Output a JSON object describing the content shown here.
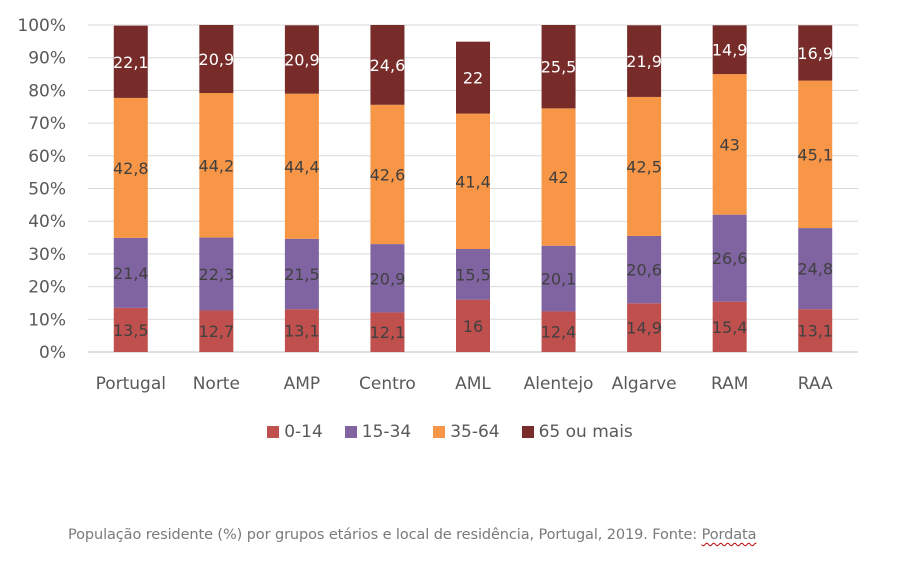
{
  "chart_data": {
    "type": "bar",
    "stacked": true,
    "orientation": "vertical",
    "title": "",
    "xlabel": "",
    "ylabel": "",
    "ylim": [
      0,
      100
    ],
    "y_ticks": [
      "0%",
      "10%",
      "20%",
      "30%",
      "40%",
      "50%",
      "60%",
      "70%",
      "80%",
      "90%",
      "100%"
    ],
    "grid": true,
    "legend_position": "bottom",
    "categories": [
      "Portugal",
      "Norte",
      "AMP",
      "Centro",
      "AML",
      "Alentejo",
      "Algarve",
      "RAM",
      "RAA"
    ],
    "series": [
      {
        "name": "0-14",
        "color": "#C0504D",
        "label_color": "#404040",
        "values": [
          13.5,
          12.7,
          13.1,
          12.1,
          16,
          12.4,
          14.9,
          15.4,
          13.1
        ],
        "labels": [
          "13,5",
          "12,7",
          "13,1",
          "12,1",
          "16",
          "12,4",
          "14,9",
          "15,4",
          "13,1"
        ]
      },
      {
        "name": "15-34",
        "color": "#8064A2",
        "label_color": "#404040",
        "values": [
          21.4,
          22.3,
          21.5,
          20.9,
          15.5,
          20.1,
          20.6,
          26.6,
          24.8
        ],
        "labels": [
          "21,4",
          "22,3",
          "21,5",
          "20,9",
          "15,5",
          "20,1",
          "20,6",
          "26,6",
          "24,8"
        ]
      },
      {
        "name": "35-64",
        "color": "#F79646",
        "label_color": "#404040",
        "values": [
          42.8,
          44.2,
          44.4,
          42.6,
          41.4,
          42,
          42.5,
          43,
          45.1
        ],
        "labels": [
          "42,8",
          "44,2",
          "44,4",
          "42,6",
          "41,4",
          "42",
          "42,5",
          "43",
          "45,1"
        ]
      },
      {
        "name": "65 ou mais",
        "color": "#772C2A",
        "label_color": "#ffffff",
        "values": [
          22.1,
          20.9,
          20.9,
          24.6,
          22,
          25.5,
          21.9,
          14.9,
          16.9
        ],
        "labels": [
          "22,1",
          "20,9",
          "20,9",
          "24,6",
          "22",
          "25,5",
          "21,9",
          "14,9",
          "16,9"
        ]
      }
    ]
  },
  "caption": {
    "text": "População residente (%) por grupos etários e local de residência, Portugal, 2019. Fonte: ",
    "link_text": "Pordata"
  }
}
